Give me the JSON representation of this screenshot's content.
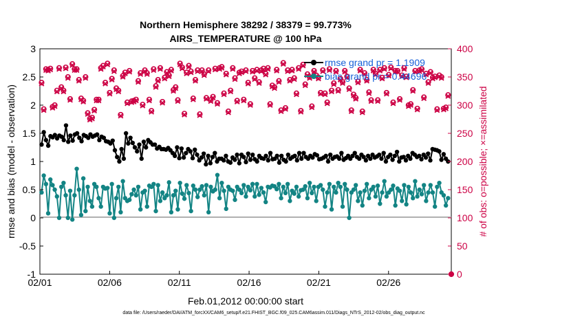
{
  "chart_data": {
    "type": "line",
    "title": "Northern Hemisphere 38292 / 38379 = 99.773%",
    "subtitle": "AIRS_TEMPERATURE @ 100 hPa",
    "xlabel": "Feb.01,2012 00:00:00 start",
    "ylabel": "rmse and bias (model - observation)",
    "ylabel_right": "# of obs: o=possible; ×=assimilated",
    "footer": "data file: /Users/raeder/DAI/ATM_forcXX/CAM6_setup/f.e21.FHIST_BGC.f09_025.CAM6assim.011/Diags_NTrS_2012-02/obs_diag_output.nc",
    "xlim": [
      0,
      29.5
    ],
    "ylim": [
      -1,
      3
    ],
    "ylim_right": [
      0,
      400
    ],
    "x_ticks": [
      0,
      5,
      10,
      15,
      20,
      25
    ],
    "x_tick_labels": [
      "02/01",
      "02/06",
      "02/11",
      "02/16",
      "02/21",
      "02/26"
    ],
    "y_ticks": [
      "-1",
      "-0.5",
      "0",
      "0.5",
      "1",
      "1.5",
      "2",
      "2.5",
      "3"
    ],
    "y_ticks_right": [
      "0",
      "50",
      "100",
      "150",
      "200",
      "250",
      "300",
      "350",
      "400"
    ],
    "legend": [
      {
        "label": "rmse grand pr = 1.1909",
        "color": "#000000"
      },
      {
        "label": "bias grand pr = 0.44696",
        "color": "#138484"
      }
    ],
    "obs_points_below": [
      "0"
    ],
    "series": [
      {
        "name": "rmse",
        "color": "#000000",
        "values": [
          1.3,
          1.52,
          1.38,
          1.28,
          1.45,
          1.43,
          1.47,
          1.41,
          1.46,
          1.44,
          1.38,
          1.64,
          1.35,
          1.46,
          1.37,
          1.48,
          1.5,
          1.42,
          1.36,
          1.47,
          1.45,
          1.42,
          1.48,
          1.44,
          1.46,
          1.48,
          1.38,
          1.44,
          1.42,
          1.36,
          1.35,
          1.32,
          1.37,
          1.2,
          1.08,
          1.0,
          1.22,
          1.05,
          1.5,
          1.32,
          1.42,
          1.33,
          1.25,
          1.18,
          1.3,
          1.05,
          1.35,
          1.25,
          1.38,
          1.34,
          1.3,
          1.3,
          1.23,
          1.26,
          1.22,
          1.22,
          1.21,
          1.24,
          1.2,
          1.15,
          1.1,
          1.25,
          1.06,
          1.23,
          1.07,
          1.15,
          1.22,
          1.18,
          1.06,
          1.21,
          1.12,
          1.02,
          1.07,
          1.14,
          0.95,
          1.1,
          0.97,
          1.08,
          1.15,
          1.0,
          1.05,
          1.05,
          1.02,
          1.1,
          1.0,
          0.98,
          1.07,
          1.03,
          1.12,
          0.97,
          1.12,
          1.08,
          0.99,
          1.14,
          1.03,
          1.12,
          1.04,
          1.0,
          1.1,
          1.06,
          1.05,
          1.1,
          1.02,
          1.15,
          1.04,
          1.05,
          1.1,
          0.98,
          1.1,
          1.03,
          1.0,
          1.12,
          1.05,
          1.08,
          1.1,
          1.02,
          1.15,
          1.05,
          1.15,
          1.08,
          1.05,
          1.1,
          1.07,
          1.13,
          1.11,
          1.04,
          1.05,
          1.07,
          1.1,
          1.0,
          1.12,
          1.05,
          1.08,
          1.09,
          1.05,
          1.15,
          1.03,
          1.06,
          1.1,
          1.05,
          1.1,
          1.15,
          1.08,
          1.05,
          1.12,
          1.08,
          1.02,
          1.1,
          1.05,
          1.12,
          1.07,
          1.09,
          1.12,
          1.05,
          1.15,
          1.0,
          1.08,
          1.12,
          1.03,
          1.1,
          1.17,
          1.0,
          1.07,
          1.08,
          1.02,
          1.1,
          1.05,
          1.15,
          1.12,
          1.08,
          1.1,
          1.04,
          1.12,
          1.07,
          1.14,
          1.02,
          1.22,
          1.21,
          1.2,
          1.18,
          1.03,
          1.13,
          1.05,
          1.0
        ]
      },
      {
        "name": "bias",
        "color": "#138484",
        "values": [
          0.45,
          0.75,
          0.6,
          0.08,
          0.68,
          0.58,
          0.5,
          0.38,
          0.0,
          0.55,
          0.62,
          0.4,
          0.0,
          0.48,
          -0.03,
          0.4,
          0.87,
          0.5,
          0.05,
          0.7,
          0.12,
          0.55,
          0.3,
          0.2,
          0.6,
          0.55,
          0.35,
          0.2,
          0.55,
          0.52,
          0.53,
          0.08,
          0.6,
          0.0,
          0.35,
          0.55,
          0.1,
          0.65,
          0.35,
          0.3,
          0.32,
          0.42,
          0.5,
          0.4,
          0.55,
          0.15,
          0.45,
          0.48,
          0.2,
          0.57,
          0.55,
          0.6,
          0.12,
          0.58,
          0.3,
          0.45,
          0.35,
          0.4,
          0.63,
          0.1,
          0.4,
          0.48,
          0.15,
          0.62,
          0.43,
          0.34,
          0.58,
          0.44,
          0.12,
          0.57,
          0.5,
          0.37,
          0.5,
          0.56,
          0.4,
          0.58,
          0.1,
          0.55,
          0.47,
          0.5,
          0.76,
          0.35,
          0.62,
          0.48,
          0.16,
          0.55,
          0.5,
          0.48,
          0.32,
          0.55,
          0.5,
          0.44,
          0.58,
          0.38,
          0.55,
          0.49,
          0.6,
          0.38,
          0.6,
          0.41,
          0.53,
          0.45,
          0.28,
          0.55,
          0.54,
          0.57,
          0.56,
          0.51,
          0.6,
          0.35,
          0.55,
          0.44,
          0.6,
          0.3,
          0.48,
          0.43,
          0.55,
          0.38,
          0.49,
          0.5,
          0.56,
          0.35,
          0.62,
          0.44,
          0.55,
          0.3,
          0.55,
          0.58,
          0.5,
          0.2,
          0.45,
          0.6,
          0.15,
          0.55,
          0.45,
          0.62,
          0.55,
          0.2,
          0.6,
          0.5,
          0.0,
          0.45,
          0.5,
          0.58,
          0.3,
          0.45,
          0.22,
          0.48,
          0.6,
          0.35,
          0.5,
          0.55,
          0.38,
          0.57,
          0.25,
          0.45,
          0.65,
          0.38,
          0.45,
          0.5,
          0.57,
          0.22,
          0.52,
          0.48,
          0.3,
          0.58,
          0.24,
          0.55,
          0.45,
          0.35,
          0.65,
          0.38,
          0.5,
          0.42,
          0.58,
          0.3,
          0.45,
          0.58,
          0.45,
          0.2,
          0.55,
          0.62,
          0.45,
          0.4,
          0.22,
          0.35
        ]
      },
      {
        "name": "obs_possible",
        "axis": "right",
        "color": "#cc0044",
        "values": [
          340,
          293,
          364,
          363,
          365,
          297,
          300,
          326,
          366,
          332,
          326,
          367,
          350,
          311,
          373,
          364,
          364,
          345,
          312,
          308,
          350,
          286,
          276,
          278,
          292,
          310,
          310,
          366,
          370,
          340,
          374,
          322,
          347,
          362,
          330,
          326,
          283,
          352,
          358,
          305,
          361,
          307,
          308,
          310,
          343,
          357,
          301,
          362,
          357,
          310,
          290,
          364,
          334,
          345,
          366,
          306,
          349,
          359,
          353,
          363,
          327,
          332,
          309,
          374,
          367,
          285,
          358,
          370,
          360,
          312,
          345,
          362,
          284,
          362,
          355,
          313,
          362,
          309,
          315,
          365,
          304,
          366,
          368,
          321,
          356,
          289,
          326,
          366,
          348,
          308,
          358,
          360,
          310,
          362,
          340,
          302,
          361,
          348,
          363,
          341,
          362,
          365,
          356,
          366,
          302,
          335,
          332,
          363,
          343,
          291,
          375,
          295,
          362,
          345,
          363,
          348,
          321,
          366,
          290,
          372,
          337,
          355,
          350,
          298,
          361,
          353,
          349,
          322,
          362,
          321,
          305,
          364,
          326,
          339,
          361,
          327,
          347,
          341,
          361,
          351,
          330,
          291,
          319,
          313,
          342,
          363,
          289,
          357,
          345,
          323,
          309,
          363,
          356,
          309,
          363,
          349,
          366,
          322,
          354,
          367,
          305,
          361,
          361,
          311,
          353,
          366,
          351,
          300,
          302,
          327,
          361,
          294,
          362,
          364,
          314,
          356,
          341,
          359,
          349,
          351,
          293,
          353,
          350,
          294,
          296,
          318
        ]
      },
      {
        "name": "obs_assimilated",
        "axis": "right",
        "color": "#cc0044",
        "values": [
          338,
          291,
          362,
          361,
          363,
          295,
          298,
          324,
          364,
          330,
          324,
          365,
          348,
          309,
          371,
          362,
          362,
          343,
          310,
          306,
          348,
          284,
          274,
          276,
          290,
          308,
          308,
          364,
          368,
          338,
          372,
          320,
          345,
          360,
          328,
          324,
          281,
          350,
          356,
          303,
          359,
          305,
          306,
          308,
          341,
          355,
          299,
          360,
          355,
          308,
          288,
          362,
          332,
          343,
          364,
          304,
          347,
          357,
          351,
          361,
          325,
          330,
          307,
          372,
          365,
          283,
          356,
          368,
          358,
          310,
          343,
          360,
          282,
          360,
          353,
          311,
          360,
          307,
          313,
          363,
          302,
          364,
          366,
          319,
          354,
          287,
          324,
          364,
          346,
          306,
          356,
          358,
          308,
          360,
          338,
          300,
          359,
          346,
          361,
          339,
          360,
          363,
          354,
          364,
          300,
          333,
          330,
          361,
          341,
          289,
          373,
          293,
          360,
          343,
          361,
          346,
          319,
          364,
          288,
          370,
          335,
          353,
          348,
          296,
          359,
          351,
          347,
          320,
          360,
          319,
          303,
          362,
          324,
          337,
          359,
          325,
          345,
          339,
          359,
          349,
          328,
          289,
          317,
          311,
          340,
          361,
          287,
          355,
          343,
          321,
          307,
          361,
          354,
          307,
          361,
          347,
          364,
          320,
          352,
          365,
          303,
          359,
          359,
          309,
          351,
          364,
          349,
          298,
          300,
          325,
          359,
          292,
          360,
          362,
          312,
          354,
          339,
          357,
          347,
          349,
          291,
          351,
          348,
          292,
          294,
          316
        ]
      }
    ]
  }
}
